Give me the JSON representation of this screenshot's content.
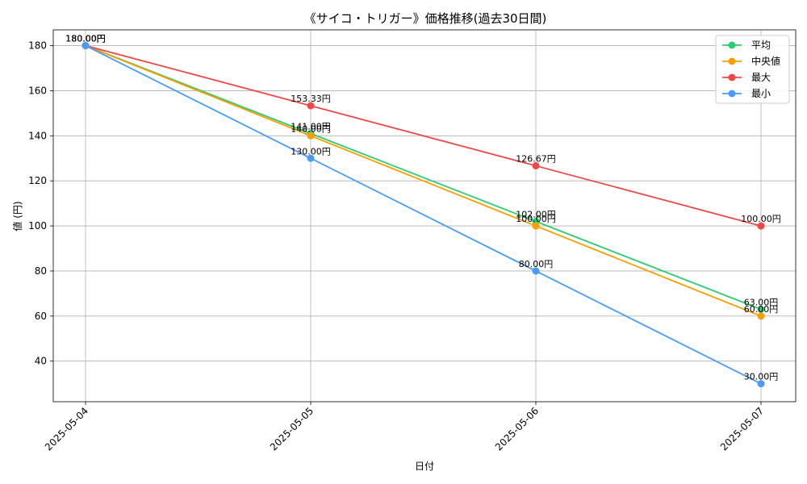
{
  "chart_data": {
    "type": "line",
    "title": "《サイコ・トリガー》価格推移(過去30日間)",
    "xlabel": "日付",
    "ylabel": "値 (円)",
    "categories": [
      "2025-05-04",
      "2025-05-05",
      "2025-05-06",
      "2025-05-07"
    ],
    "ylim": [
      22,
      187
    ],
    "yticks": [
      40,
      60,
      80,
      100,
      120,
      140,
      160,
      180
    ],
    "grid": true,
    "legend_position": "top-right",
    "value_suffix": "円",
    "series": [
      {
        "name": "平均",
        "color": "#2ecc71",
        "values": [
          180.0,
          141.0,
          102.0,
          63.0
        ]
      },
      {
        "name": "中央値",
        "color": "#f5a000",
        "values": [
          180.0,
          140.0,
          100.0,
          60.0
        ]
      },
      {
        "name": "最大",
        "color": "#f04848",
        "values": [
          180.0,
          153.33,
          126.67,
          100.0
        ]
      },
      {
        "name": "最小",
        "color": "#4a9bf5",
        "values": [
          180.0,
          130.0,
          80.0,
          30.0
        ]
      }
    ]
  }
}
